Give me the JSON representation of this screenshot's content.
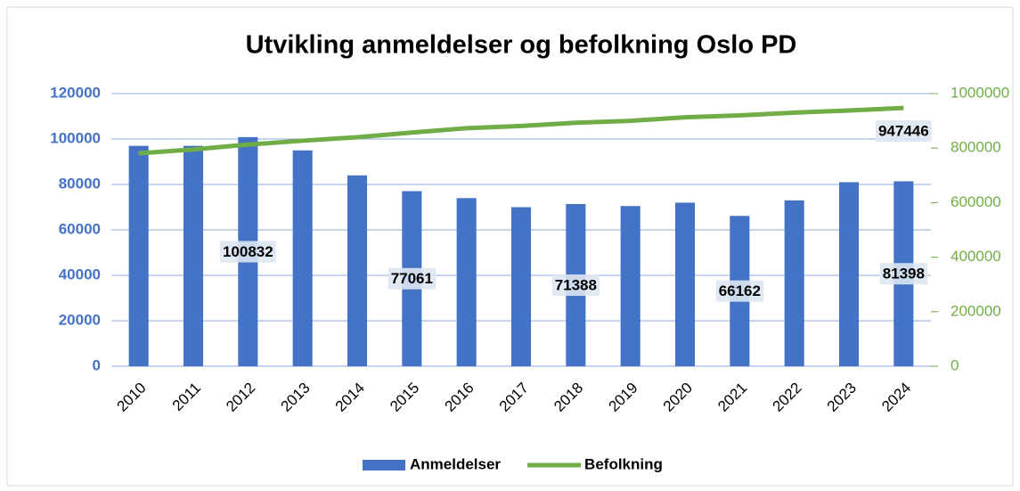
{
  "chart_data": {
    "type": "bar-line",
    "title": "Utvikling anmeldelser og befolkning Oslo PD",
    "categories": [
      "2010",
      "2011",
      "2012",
      "2013",
      "2014",
      "2015",
      "2016",
      "2017",
      "2018",
      "2019",
      "2020",
      "2021",
      "2022",
      "2023",
      "2024"
    ],
    "series": [
      {
        "name": "Anmeldelser",
        "type": "bar",
        "color": "#4472c4",
        "axis": "y",
        "values": [
          97000,
          97000,
          100832,
          95000,
          84000,
          77061,
          74000,
          70000,
          71388,
          70500,
          72000,
          66162,
          73000,
          81000,
          81398
        ],
        "value_labels": [
          null,
          null,
          "100832",
          null,
          null,
          "77061",
          null,
          null,
          "71388",
          null,
          null,
          "66162",
          null,
          null,
          "81398"
        ]
      },
      {
        "name": "Befolkning",
        "type": "line",
        "color": "#70ad47",
        "axis": "y2",
        "values": [
          781000,
          795000,
          813000,
          827000,
          840000,
          857000,
          873000,
          881000,
          893000,
          900000,
          913000,
          920000,
          930000,
          938000,
          947446
        ],
        "value_labels": [
          null,
          null,
          null,
          null,
          null,
          null,
          null,
          null,
          null,
          null,
          null,
          null,
          null,
          null,
          "947446"
        ]
      }
    ],
    "ylim": [
      0,
      120000
    ],
    "yticks": [
      0,
      20000,
      40000,
      60000,
      80000,
      100000,
      120000
    ],
    "y2lim": [
      0,
      1000000
    ],
    "y2ticks": [
      0,
      200000,
      400000,
      600000,
      800000,
      1000000
    ],
    "grid": true,
    "legend": "bottom"
  }
}
